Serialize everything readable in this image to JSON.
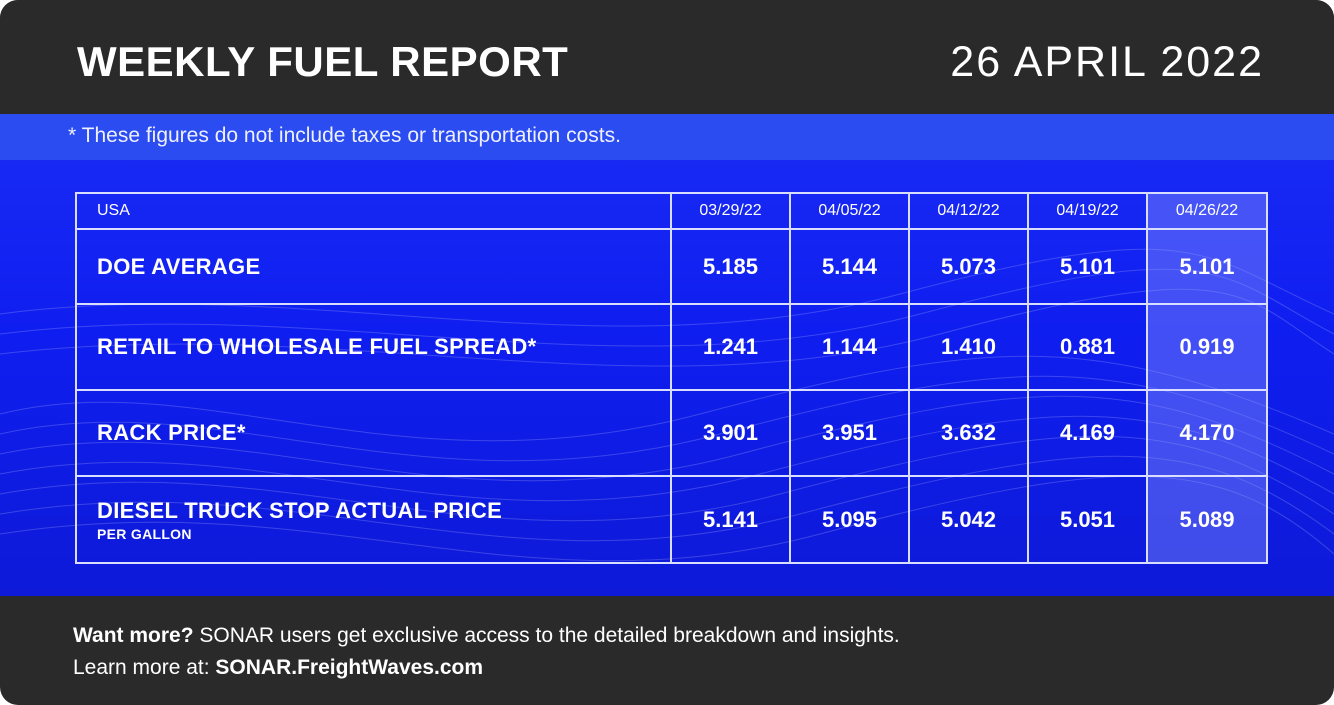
{
  "header": {
    "title": "WEEKLY FUEL REPORT",
    "date": "26 APRIL 2022"
  },
  "notice": "* These figures do not include taxes or transportation costs.",
  "table": {
    "region": "USA",
    "dates": [
      "03/29/22",
      "04/05/22",
      "04/12/22",
      "04/19/22",
      "04/26/22"
    ],
    "rows": [
      {
        "label": "DOE AVERAGE",
        "sub": "",
        "values": [
          "5.185",
          "5.144",
          "5.073",
          "5.101",
          "5.101"
        ]
      },
      {
        "label": "RETAIL TO WHOLESALE FUEL SPREAD*",
        "sub": "",
        "values": [
          "1.241",
          "1.144",
          "1.410",
          "0.881",
          "0.919"
        ]
      },
      {
        "label": "RACK PRICE*",
        "sub": "",
        "values": [
          "3.901",
          "3.951",
          "3.632",
          "4.169",
          "4.170"
        ]
      },
      {
        "label": "DIESEL TRUCK STOP ACTUAL PRICE",
        "sub": "PER GALLON",
        "values": [
          "5.141",
          "5.095",
          "5.042",
          "5.051",
          "5.089"
        ]
      }
    ]
  },
  "footer": {
    "lead": "Want more?",
    "line1": " SONAR users get exclusive access to the detailed breakdown and insights.",
    "line2_prefix": "Learn more at: ",
    "link": "SONAR.FreightWaves.com"
  },
  "colors": {
    "dark": "#2a2a2a",
    "blue": "#0f1ef0",
    "highlight": "#6f78ff"
  }
}
